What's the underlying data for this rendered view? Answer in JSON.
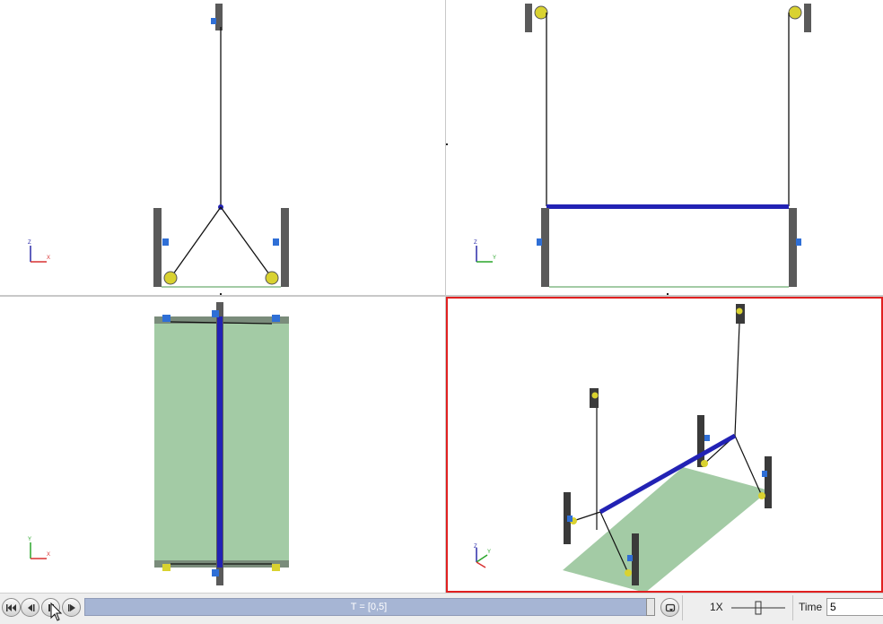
{
  "colors": {
    "post": "#5a5a5a",
    "pulley": "#d9d230",
    "marker": "#2f6fd6",
    "beam": "#2222b4",
    "plate": "#a3cba5",
    "active_border": "#e02020"
  },
  "viewports": {
    "top_left": {
      "triad_up": "Z",
      "triad_right": "X",
      "triad_right_color": "#d83030"
    },
    "top_right": {
      "triad_up": "Z",
      "triad_right": "Y",
      "triad_right_color": "#2aa52a"
    },
    "bottom_left": {
      "triad_up": "Y",
      "triad_right": "X",
      "triad_right_color": "#d83030"
    },
    "bottom_right": {
      "triad_up": "Z",
      "triad_right": "Y",
      "triad_right_color": "#2aa52a"
    }
  },
  "toolbar": {
    "buttons": [
      {
        "name": "rewind-button",
        "icon": "skip-to-start-icon"
      },
      {
        "name": "step-back-button",
        "icon": "step-back-icon"
      },
      {
        "name": "pause-button",
        "icon": "pause-icon"
      },
      {
        "name": "play-button",
        "icon": "play-icon"
      }
    ],
    "progress_label": "T = [0,5]",
    "progress": 0.99,
    "loop_icon": "loop-icon",
    "speed_label": "1X",
    "time_label": "Time",
    "time_value": "5"
  }
}
